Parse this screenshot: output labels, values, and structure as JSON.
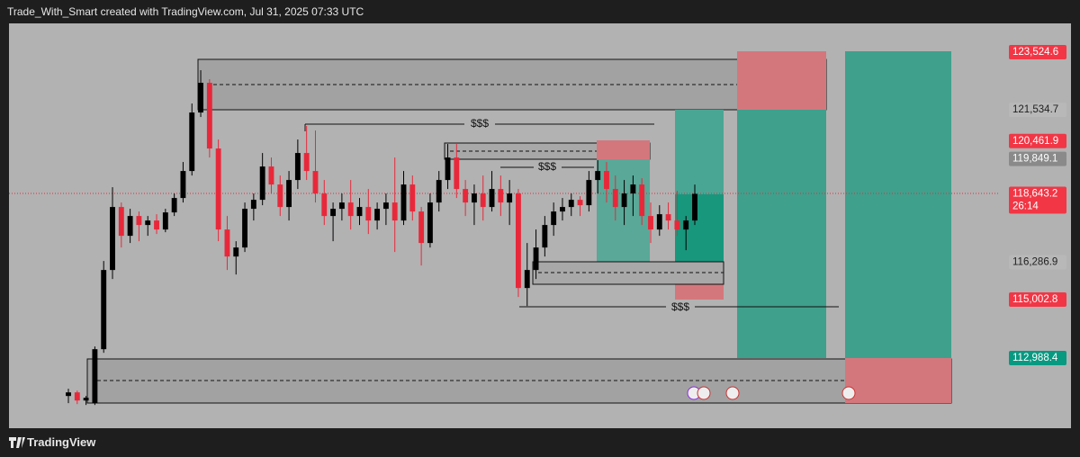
{
  "header": "Trade_With_Smart created with TradingView.com, Jul 31, 2025 07:33 UTC",
  "footer": "TradingView",
  "chart_data": {
    "type": "candlestick",
    "up_color": "#000000",
    "down_color": "#e8283a",
    "ylim": [
      110570,
      124515
    ],
    "open": [
      111680,
      111804,
      111525,
      111432,
      113292,
      116020,
      118190,
      117198,
      117880,
      117570,
      117725,
      117415,
      118004,
      118500,
      119430,
      121445,
      122468,
      120205,
      117415,
      116485,
      116795,
      118128,
      118438,
      119585,
      118965,
      118190,
      119120,
      120050,
      119430,
      118655,
      117880,
      118128,
      118345,
      117880,
      118190,
      117725,
      118128,
      118345,
      117725,
      118965,
      118035,
      116950,
      118345,
      119120,
      119895,
      118810,
      118345,
      118655,
      118190,
      118810,
      118345,
      118655,
      115400,
      116020,
      116795,
      117570,
      118035,
      118190,
      118438,
      118252,
      119120,
      119430,
      118810,
      118190,
      118655,
      118965,
      117880,
      117415,
      117942,
      117725,
      117415,
      117725
    ],
    "high": [
      111928,
      111866,
      111680,
      113385,
      116330,
      118872,
      118345,
      118128,
      118035,
      117880,
      117942,
      118128,
      118655,
      119740,
      121755,
      122902,
      122592,
      120515,
      117880,
      117012,
      118345,
      118655,
      120050,
      119895,
      119275,
      119430,
      120515,
      120980,
      120825,
      119120,
      118345,
      118655,
      119120,
      118500,
      118810,
      118345,
      118655,
      119895,
      119430,
      119275,
      118190,
      118655,
      119430,
      120360,
      120360,
      119120,
      118965,
      119275,
      119430,
      119275,
      119120,
      118810,
      116950,
      117415,
      117880,
      118345,
      118500,
      118655,
      118562,
      119430,
      119802,
      119740,
      119275,
      119120,
      119275,
      119182,
      118345,
      118252,
      118345,
      118748,
      117880,
      118965
    ],
    "low": [
      111432,
      111401,
      111370,
      111370,
      113168,
      115710,
      116795,
      116950,
      117012,
      117198,
      117260,
      117322,
      117880,
      118345,
      119275,
      121290,
      119895,
      117012,
      116020,
      115865,
      116640,
      117725,
      118252,
      118655,
      117880,
      117725,
      118810,
      119120,
      118345,
      117570,
      117012,
      117725,
      117415,
      117570,
      117260,
      117415,
      117570,
      116640,
      117570,
      117725,
      116175,
      116795,
      118035,
      118810,
      118500,
      117880,
      117570,
      117725,
      118035,
      117880,
      117570,
      115090,
      114780,
      115710,
      116485,
      117198,
      117725,
      117880,
      117880,
      118035,
      118655,
      118345,
      117725,
      117570,
      117880,
      117570,
      116950,
      117198,
      117415,
      117198,
      116702,
      117570
    ],
    "close": [
      111804,
      111525,
      111618,
      113292,
      116020,
      118190,
      117198,
      117880,
      117570,
      117725,
      117415,
      118004,
      118500,
      119430,
      121445,
      122468,
      120205,
      117415,
      116485,
      116795,
      118128,
      118438,
      119585,
      118965,
      118190,
      119120,
      120050,
      119430,
      118655,
      117880,
      118128,
      118345,
      117880,
      118190,
      117725,
      118128,
      118345,
      117725,
      118965,
      118035,
      116950,
      118345,
      119120,
      119895,
      118810,
      118345,
      118655,
      118190,
      118810,
      118345,
      118655,
      115400,
      116020,
      116795,
      117570,
      118035,
      118190,
      118438,
      118252,
      119120,
      119430,
      118810,
      118190,
      118655,
      118965,
      117880,
      117415,
      117942,
      117725,
      117415,
      117725,
      118643.2
    ],
    "price_labels": [
      {
        "value": 123524.6,
        "label": "123,524.6",
        "color": "#f23645",
        "text_color": "#ffffff"
      },
      {
        "value": 121534.7,
        "label": "121,534.7",
        "color": "#b8b8b8",
        "text_color": "#1e1e1e"
      },
      {
        "value": 120461.9,
        "label": "120,461.9",
        "color": "#f23645",
        "text_color": "#ffffff"
      },
      {
        "value": 119849.1,
        "label": "119,849.1",
        "color": "#8a8a8a",
        "text_color": "#ffffff"
      },
      {
        "value": 118643.2,
        "label": "118,643.2",
        "color": "#f23645",
        "text_color": "#ffffff"
      },
      {
        "value": 116286.9,
        "label": "116,286.9",
        "color": "#b8b8b8",
        "text_color": "#1e1e1e"
      },
      {
        "value": 115002.8,
        "label": "115,002.8",
        "color": "#f23645",
        "text_color": "#ffffff"
      },
      {
        "value": 112988.4,
        "label": "112,988.4",
        "color": "#089981",
        "text_color": "#ffffff"
      }
    ],
    "countdown": "26:14",
    "annotations": [
      "$$$",
      "$$$",
      "$$$"
    ]
  }
}
